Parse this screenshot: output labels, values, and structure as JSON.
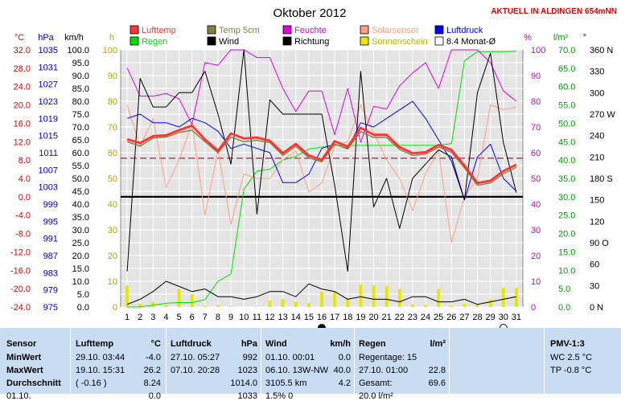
{
  "title": "Oktober 2012",
  "banner": "AKTUELL IN ALDINGEN 654mNN",
  "axis_headers": {
    "celsius": "°C",
    "hpa": "hPa",
    "kmh": "km/h",
    "h": "h",
    "percent": "%",
    "lm2": "l/m²",
    "deg": "°"
  },
  "legend": [
    {
      "label": "Lufttemp",
      "color": "#ff3333"
    },
    {
      "label": "Temp 5cm",
      "color": "#808040"
    },
    {
      "label": "Feuchte",
      "color": "#e000e0"
    },
    {
      "label": "Solarsensor",
      "color": "#ffa080"
    },
    {
      "label": "Luftdruck",
      "color": "#0000ff"
    },
    {
      "label": "Regen",
      "color": "#00e000"
    },
    {
      "label": "Wind",
      "color": "#000000"
    },
    {
      "label": "Richtung",
      "color": "#000000"
    },
    {
      "label": "Sonnenschein",
      "color": "#e8e800"
    },
    {
      "label": "8.4 Monat-Ø",
      "color": "#ffffff"
    }
  ],
  "chart_data": {
    "type": "line",
    "title": "Oktober 2012",
    "x": [
      1,
      2,
      3,
      4,
      5,
      6,
      7,
      8,
      9,
      10,
      11,
      12,
      13,
      14,
      15,
      16,
      17,
      18,
      19,
      20,
      21,
      22,
      23,
      24,
      25,
      26,
      27,
      28,
      29,
      30,
      31
    ],
    "axes": {
      "temp_c": {
        "ticks": [
          32.0,
          28.0,
          24.0,
          20.0,
          16.0,
          12.0,
          8.0,
          4.0,
          0.0,
          -4.0,
          -8.0,
          -12.0,
          -16.0,
          -20.0,
          -24.0
        ],
        "ylim": [
          -24,
          32
        ]
      },
      "pressure_hpa": {
        "ticks": [
          1035,
          1031,
          1027,
          1023,
          1019,
          1015,
          1011,
          1007,
          1003,
          999,
          995,
          991,
          987,
          983,
          979,
          975
        ],
        "ylim": [
          975,
          1035
        ]
      },
      "wind_kmh": {
        "ticks": [
          "100.0",
          "95.0",
          "90.0",
          "85.0",
          "80.0",
          "75.0",
          "70.0",
          "65.0",
          "60.0",
          "55.0",
          "50.0",
          "45.0",
          "40.0",
          "35.0",
          "30.0",
          "25.0",
          "20.0",
          "15.0",
          "10.0",
          "5.0",
          "0.0"
        ],
        "ylim": [
          0,
          100
        ]
      },
      "sun_h": {
        "ticks": [
          100,
          90,
          80,
          70,
          60,
          50,
          40,
          30,
          20,
          10,
          0
        ],
        "ylim": [
          0,
          100
        ]
      },
      "humidity_pct": {
        "ticks": [
          100,
          90,
          80,
          70,
          60,
          50,
          40,
          30,
          20,
          10,
          0
        ],
        "ylim": [
          0,
          100
        ]
      },
      "rain_lm2": {
        "ticks": [
          "70.0",
          "65.0",
          "60.0",
          "55.0",
          "50.0",
          "45.0",
          "40.0",
          "35.0",
          "30.0",
          "25.0",
          "20.0",
          "15.0",
          "10.0",
          "5.0",
          "0.0"
        ],
        "ylim": [
          0,
          70
        ]
      },
      "direction": {
        "ticks": [
          "360 N",
          "330",
          "300",
          "270 W",
          "240",
          "210",
          "180 S",
          "150",
          "120",
          "90 O",
          "60",
          "30",
          "0 N"
        ],
        "ylim": [
          0,
          360
        ]
      }
    },
    "reference_lines": {
      "zero_celsius": 0.0,
      "monthly_mean_celsius": 8.4
    },
    "moon_days": [
      16,
      30
    ],
    "series": [
      {
        "name": "Lufttemp",
        "axis": "temp_c",
        "color": "#ff3333",
        "values": [
          12.5,
          11.7,
          13.2,
          13.4,
          14.5,
          15.5,
          12.5,
          10.0,
          13.8,
          12.7,
          12.9,
          12.2,
          9.5,
          11.5,
          9.0,
          8.0,
          12.1,
          10.9,
          15.0,
          13.5,
          13.5,
          10.8,
          9.5,
          9.7,
          11.3,
          10.2,
          6.8,
          3.0,
          3.5,
          5.6,
          7.0
        ]
      },
      {
        "name": "Temp 5cm",
        "axis": "temp_c",
        "color": "#808040",
        "values": [
          12.0,
          11.0,
          12.8,
          13.0,
          14.0,
          14.5,
          12.0,
          9.6,
          13.0,
          12.0,
          12.3,
          11.8,
          9.0,
          11.0,
          8.5,
          7.6,
          11.5,
          10.4,
          14.2,
          12.9,
          12.9,
          10.3,
          9.0,
          9.3,
          10.8,
          9.7,
          6.3,
          2.5,
          3.0,
          5.0,
          6.4
        ]
      },
      {
        "name": "Solarsensor",
        "axis": "temp_c",
        "color": "#ffa080",
        "values": [
          20.0,
          11.0,
          17.0,
          2.0,
          8.0,
          16.0,
          -4.0,
          10.0,
          -6.0,
          5.0,
          4.0,
          4.0,
          8.0,
          10.0,
          1.0,
          3.0,
          11.0,
          12.0,
          20.0,
          14.0,
          8.0,
          4.0,
          -3.0,
          5.0,
          10.0,
          -10.0,
          0.0,
          4.0,
          20.0,
          19.0,
          19.5
        ]
      },
      {
        "name": "Feuchte",
        "axis": "humidity_pct",
        "color": "#e000e0",
        "values": [
          93,
          82,
          82,
          83,
          81,
          71,
          95,
          94,
          100,
          100,
          97,
          97,
          85,
          76,
          84,
          84,
          67,
          85,
          64,
          78,
          77,
          86,
          91,
          95,
          85,
          100,
          100,
          100,
          95,
          84,
          80
        ]
      },
      {
        "name": "Luftdruck",
        "axis": "pressure_hpa",
        "color": "#0000ff",
        "values": [
          1019,
          1020,
          1018,
          1018,
          1017,
          1019,
          1018,
          1016,
          1012,
          1013,
          1012,
          1011,
          1004,
          1004,
          1006,
          1012,
          1013,
          1012,
          1018,
          1017,
          1019,
          1021,
          1023,
          1019,
          1014,
          1009,
          1000,
          1010,
          1013,
          1005,
          1002
        ]
      },
      {
        "name": "Regen",
        "axis": "rain_lm2",
        "color": "#00e000",
        "values": [
          0.0,
          0.0,
          0.5,
          1.0,
          1.2,
          1.2,
          2.0,
          7.0,
          9.0,
          32.0,
          37.0,
          37.5,
          40.0,
          41.0,
          43.0,
          43.5,
          44.0,
          44.0,
          44.0,
          44.0,
          44.0,
          44.0,
          44.0,
          44.0,
          44.0,
          44.5,
          67.0,
          69.5,
          69.5,
          69.5,
          69.6
        ]
      },
      {
        "name": "Wind",
        "axis": "wind_kmh",
        "color": "#000000",
        "values": [
          1.0,
          3.0,
          6.0,
          10.0,
          8.0,
          6.0,
          7.0,
          4.0,
          4.0,
          3.0,
          4.0,
          6.0,
          6.0,
          4.0,
          9.0,
          7.0,
          6.0,
          3.0,
          4.0,
          3.0,
          3.0,
          2.0,
          4.0,
          4.0,
          2.0,
          2.0,
          3.0,
          1.0,
          2.0,
          3.0,
          4.0
        ]
      },
      {
        "name": "Richtung",
        "axis": "direction",
        "color": "#000000",
        "values": [
          50,
          320,
          280,
          280,
          300,
          300,
          330,
          270,
          200,
          360,
          130,
          290,
          270,
          270,
          270,
          270,
          170,
          50,
          330,
          140,
          180,
          110,
          180,
          200,
          220,
          210,
          150,
          300,
          355,
          230,
          160
        ]
      },
      {
        "name": "Sonnenschein",
        "axis": "sun_h",
        "color": "#e8e800",
        "type": "bar",
        "values": [
          8.4,
          1.2,
          2.0,
          1.0,
          7.0,
          5.0,
          0.5,
          0.8,
          0.3,
          0.0,
          0.2,
          2.5,
          3.0,
          2.0,
          1.5,
          6.0,
          6.0,
          3.5,
          8.8,
          8.5,
          8.2,
          7.0,
          1.0,
          0.8,
          7.0,
          0.6,
          1.2,
          1.0,
          3.0,
          7.5,
          7.4
        ]
      }
    ]
  },
  "stats": {
    "sensor": {
      "title": "Sensor",
      "rows": [
        "MinWert",
        "MaxWert",
        "Durchschnitt"
      ],
      "partial": "01.10."
    },
    "lufttemp": {
      "title": "Lufttemp",
      "unit": "°C",
      "rows": [
        [
          "29.10.  03:44",
          "-4.0"
        ],
        [
          "19.10.  15:31",
          "26.2"
        ],
        [
          "( -0.16 )",
          "8.24"
        ]
      ],
      "partial": "0.0"
    },
    "luftdruck": {
      "title": "Luftdruck",
      "unit": "hPa",
      "rows": [
        [
          "27.10.  05:27",
          "992"
        ],
        [
          "07.10.  20:28",
          "1023"
        ],
        [
          "",
          "1014.0"
        ]
      ],
      "partial": "1033"
    },
    "wind": {
      "title": "Wind",
      "unit": "km/h",
      "rows": [
        [
          "01.10.  00:01",
          "0.0"
        ],
        [
          "06.10.  13W-NW",
          "40.0"
        ],
        [
          "3105.5 km",
          "4.2"
        ]
      ],
      "partial": "1.5% 0"
    },
    "regen": {
      "title": "Regen",
      "unit": "l/m²",
      "rows": [
        [
          "Regentage: 15",
          ""
        ],
        [
          "27.10.  01:00",
          "22.8"
        ],
        [
          "Gesamt:",
          "69.6"
        ]
      ],
      "partial": "20.0 l/m²"
    },
    "pmv": {
      "title": "PMV-1:3",
      "rows": [
        "WC 2.5 °C",
        "TP -0.8 °C"
      ]
    }
  }
}
